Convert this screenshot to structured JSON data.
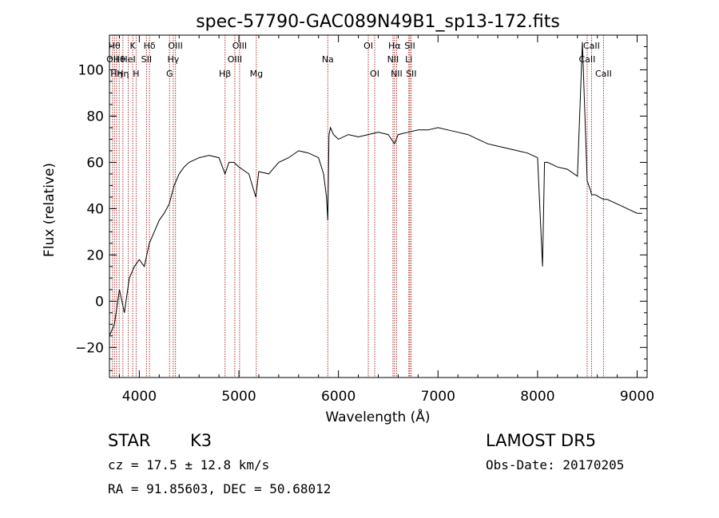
{
  "chart_data": {
    "type": "line",
    "title": "spec-57790-GAC089N49B1_sp13-172.fits",
    "xlabel": "Wavelength (Å)",
    "ylabel": "Flux (relative)",
    "xlim": [
      3700,
      9100
    ],
    "ylim": [
      -33,
      115
    ],
    "xticks": [
      4000,
      5000,
      6000,
      7000,
      8000,
      9000
    ],
    "yticks": [
      -20,
      0,
      20,
      40,
      60,
      80,
      100
    ],
    "grid": false,
    "series": [
      {
        "line_color": "#000000",
        "x": [
          3700,
          3750,
          3800,
          3850,
          3900,
          3950,
          4000,
          4050,
          4100,
          4150,
          4200,
          4250,
          4300,
          4350,
          4400,
          4450,
          4500,
          4600,
          4700,
          4800,
          4861,
          4900,
          4950,
          5000,
          5100,
          5170,
          5200,
          5300,
          5400,
          5500,
          5600,
          5700,
          5800,
          5850,
          5880,
          5893,
          5905,
          5920,
          5950,
          6000,
          6100,
          6200,
          6300,
          6400,
          6500,
          6563,
          6600,
          6700,
          6800,
          6900,
          7000,
          7100,
          7200,
          7300,
          7400,
          7500,
          7600,
          7700,
          7800,
          7900,
          8000,
          8050,
          8070,
          8100,
          8200,
          8300,
          8400,
          8450,
          8498,
          8530,
          8542,
          8580,
          8620,
          8662,
          8700,
          8800,
          8900,
          9000,
          9050
        ],
        "y": [
          -15,
          -10,
          5,
          -5,
          10,
          15,
          18,
          15,
          25,
          30,
          35,
          38,
          42,
          50,
          55,
          58,
          60,
          62,
          63,
          62,
          55,
          60,
          60,
          58,
          55,
          45,
          56,
          55,
          60,
          62,
          65,
          64,
          62,
          55,
          45,
          35,
          72,
          75,
          72,
          70,
          72,
          71,
          72,
          73,
          72,
          68,
          72,
          73,
          74,
          74,
          75,
          74,
          73,
          72,
          70,
          68,
          67,
          66,
          65,
          64,
          62,
          15,
          60,
          60,
          58,
          57,
          54,
          112,
          52,
          48,
          46,
          46,
          45,
          44,
          44,
          42,
          40,
          38,
          38
        ]
      }
    ],
    "features": [
      {
        "x": 3730,
        "label": "OII",
        "row": 1
      },
      {
        "x": 3750,
        "label": "Hθ",
        "row": 0
      },
      {
        "x": 3771,
        "label": "Hη",
        "row": 2
      },
      {
        "x": 3798,
        "label": "Hθ",
        "row": 1
      },
      {
        "x": 3835,
        "label": "Hη",
        "row": 2
      },
      {
        "x": 3889,
        "label": "HeI",
        "row": 1
      },
      {
        "x": 3934,
        "label": "K",
        "row": 0
      },
      {
        "x": 3968,
        "label": "H",
        "row": 2
      },
      {
        "x": 4072,
        "label": "SII",
        "row": 1
      },
      {
        "x": 4102,
        "label": "Hδ",
        "row": 0
      },
      {
        "x": 4304,
        "label": "G",
        "row": 2
      },
      {
        "x": 4341,
        "label": "Hγ",
        "row": 1
      },
      {
        "x": 4363,
        "label": "OIII",
        "row": 0
      },
      {
        "x": 4861,
        "label": "Hβ",
        "row": 2
      },
      {
        "x": 4959,
        "label": "OIII",
        "row": 1
      },
      {
        "x": 5007,
        "label": "OIII",
        "row": 0
      },
      {
        "x": 5175,
        "label": "Mg",
        "row": 2
      },
      {
        "x": 5893,
        "label": "Na",
        "row": 1
      },
      {
        "x": 6300,
        "label": "OI",
        "row": 0
      },
      {
        "x": 6364,
        "label": "OI",
        "row": 2
      },
      {
        "x": 6548,
        "label": "NII",
        "row": 1
      },
      {
        "x": 6563,
        "label": "Hα",
        "row": 0
      },
      {
        "x": 6584,
        "label": "NII",
        "row": 2
      },
      {
        "x": 6707,
        "label": "Li",
        "row": 1
      },
      {
        "x": 6717,
        "label": "SII",
        "row": 0
      },
      {
        "x": 6731,
        "label": "SII",
        "row": 2
      },
      {
        "x": 8498,
        "label": "CaII",
        "row": 1
      },
      {
        "x": 8542,
        "label": "CaII",
        "row": 0
      },
      {
        "x": 8662,
        "label": "CaII",
        "row": 2
      }
    ],
    "feature_line_color": "#b03030"
  },
  "info": {
    "object_class": "STAR",
    "subclass": "K3",
    "survey": "LAMOST DR5",
    "velocity": "cz = 17.5 ± 12.8 km/s",
    "obs_date": "Obs-Date: 20170205",
    "coords": "RA =  91.85603, DEC =  50.68012"
  }
}
